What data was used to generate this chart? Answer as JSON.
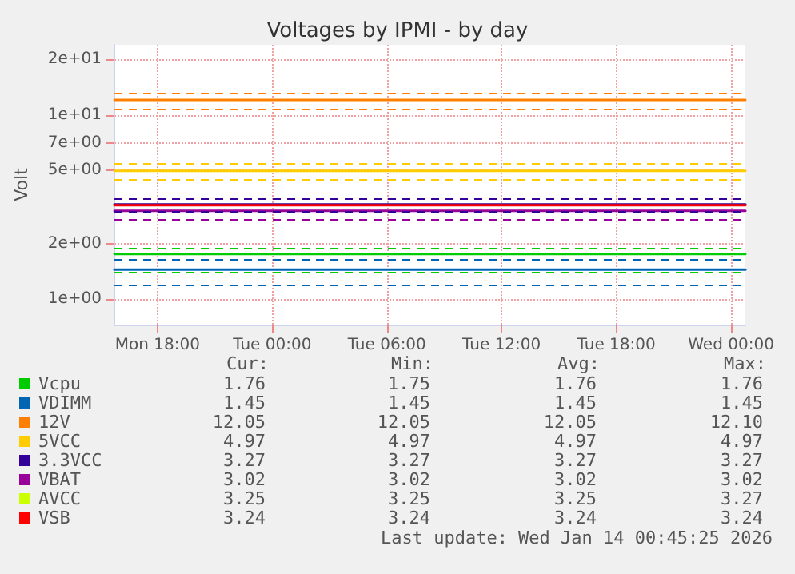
{
  "chart_data": {
    "type": "line",
    "title": "Voltages by IPMI - by day",
    "ylabel": "Volt",
    "x": [
      "2026-01-12T15:45",
      "2026-01-14T00:45"
    ],
    "xlim": [
      "2026-01-12T15:45",
      "2026-01-14T00:45"
    ],
    "xticks": [
      {
        "value": "2026-01-12T18:00",
        "label": "Mon 18:00"
      },
      {
        "value": "2026-01-13T00:00",
        "label": "Tue 00:00"
      },
      {
        "value": "2026-01-13T06:00",
        "label": "Tue 06:00"
      },
      {
        "value": "2026-01-13T12:00",
        "label": "Tue 12:00"
      },
      {
        "value": "2026-01-13T18:00",
        "label": "Tue 18:00"
      },
      {
        "value": "2026-01-14T00:00",
        "label": "Wed 00:00"
      }
    ],
    "log": true,
    "ylim": [
      0.73,
      24
    ],
    "yticks": [
      {
        "value": 1,
        "label": "1e+00"
      },
      {
        "value": 2,
        "label": "2e+00"
      },
      {
        "value": 5,
        "label": "5e+00"
      },
      {
        "value": 7,
        "label": "7e+00"
      },
      {
        "value": 10,
        "label": "1e+01"
      },
      {
        "value": 20,
        "label": "2e+01"
      }
    ],
    "grid": true,
    "legend": "bottom left",
    "marker": "none",
    "line_style": "solid",
    "series": [
      {
        "name": "Vcpu",
        "color": "#00cc00",
        "values": [
          1.76,
          1.76
        ]
      },
      {
        "name": "VDIMM",
        "color": "#0066b3",
        "values": [
          1.45,
          1.45
        ]
      },
      {
        "name": "12V",
        "color": "#ff8000",
        "values": [
          12.05,
          12.05
        ]
      },
      {
        "name": "5VCC",
        "color": "#ffcc00",
        "values": [
          4.97,
          4.97
        ]
      },
      {
        "name": "3.3VCC",
        "color": "#330099",
        "values": [
          3.27,
          3.27
        ]
      },
      {
        "name": "VBAT",
        "color": "#990099",
        "values": [
          3.02,
          3.02
        ]
      },
      {
        "name": "AVCC",
        "color": "#ccff00",
        "values": [
          null,
          null
        ]
      },
      {
        "name": "VSB",
        "color": "#ff0000",
        "values": [
          3.24,
          3.24
        ]
      }
    ],
    "ref_lines": [
      {
        "axis": "y",
        "value": 13.2,
        "color": "#ff8000",
        "line_style": "dashed"
      },
      {
        "axis": "y",
        "value": 10.8,
        "color": "#ff8000",
        "line_style": "dashed"
      },
      {
        "axis": "y",
        "value": 5.4,
        "color": "#ffcc00",
        "line_style": "dashed"
      },
      {
        "axis": "y",
        "value": 4.5,
        "color": "#ffcc00",
        "line_style": "dashed"
      },
      {
        "axis": "y",
        "value": 3.5,
        "color": "#330099",
        "line_style": "dashed"
      },
      {
        "axis": "y",
        "value": 3.0,
        "color": "#330099",
        "line_style": "dashed"
      },
      {
        "axis": "y",
        "value": 2.7,
        "color": "#990099",
        "line_style": "dashed"
      },
      {
        "axis": "y",
        "value": 1.9,
        "color": "#00cc00",
        "line_style": "dashed"
      },
      {
        "axis": "y",
        "value": 1.4,
        "color": "#00cc00",
        "line_style": "dashed"
      },
      {
        "axis": "y",
        "value": 1.65,
        "color": "#0066b3",
        "line_style": "dashed"
      },
      {
        "axis": "y",
        "value": 1.2,
        "color": "#0066b3",
        "line_style": "dashed"
      }
    ],
    "annotations": [
      "Cur:",
      "Min:",
      "Avg:",
      "Max:",
      "1.76 1.75 1.76 1.76",
      "1.45 1.45 1.45 1.45",
      "12.05 12.05 12.05 12.10",
      "4.97 4.97 4.97 4.97",
      "3.27 3.27 3.27 3.27",
      "3.02 3.02 3.02 3.02",
      "3.25 3.25 3.25 3.27",
      "3.24 3.24 3.24 3.24",
      "Last update: Wed Jan 14 00:45:25 2026"
    ]
  }
}
